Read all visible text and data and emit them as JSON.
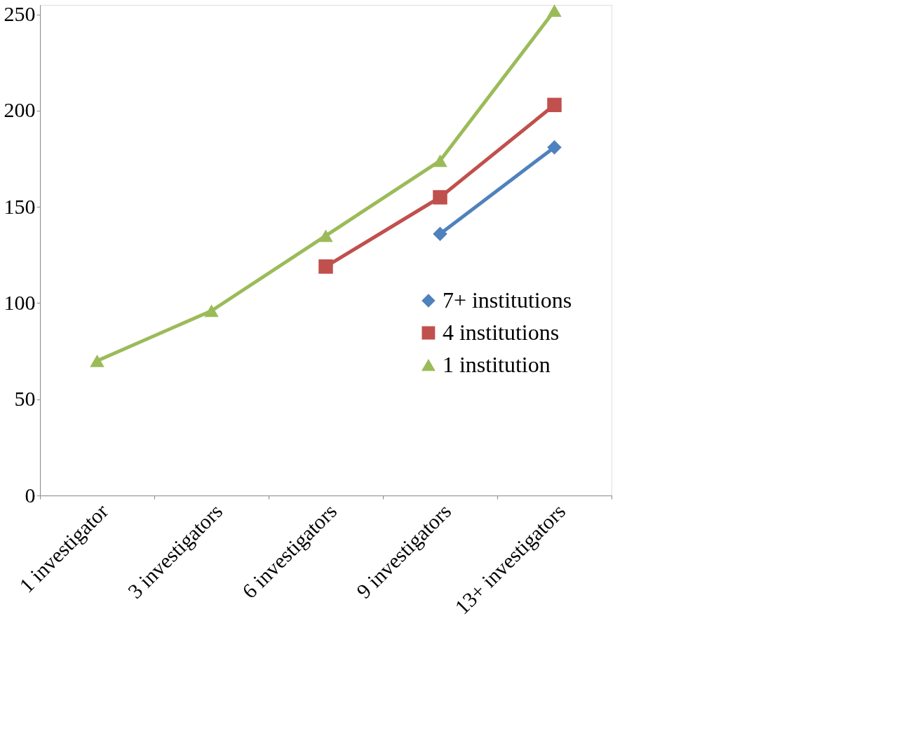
{
  "chart_data": {
    "type": "line",
    "categories": [
      "1 investigator",
      "3 investigators",
      "6 investigators",
      "9 investigators",
      "13+ investigators"
    ],
    "series": [
      {
        "name": "7+ institutions",
        "color": "#4f81bd",
        "marker": "diamond",
        "values": [
          null,
          null,
          null,
          136,
          181
        ]
      },
      {
        "name": "4 institutions",
        "color": "#c0504d",
        "marker": "square",
        "values": [
          null,
          null,
          119,
          155,
          203
        ]
      },
      {
        "name": "1 institution",
        "color": "#9bbb59",
        "marker": "triangle",
        "values": [
          70,
          96,
          135,
          174,
          252
        ]
      }
    ],
    "ylim": [
      0,
      255
    ],
    "yticks": [
      0,
      50,
      100,
      150,
      200,
      250
    ],
    "grid": false,
    "legend": "right",
    "line_style": "solid"
  }
}
